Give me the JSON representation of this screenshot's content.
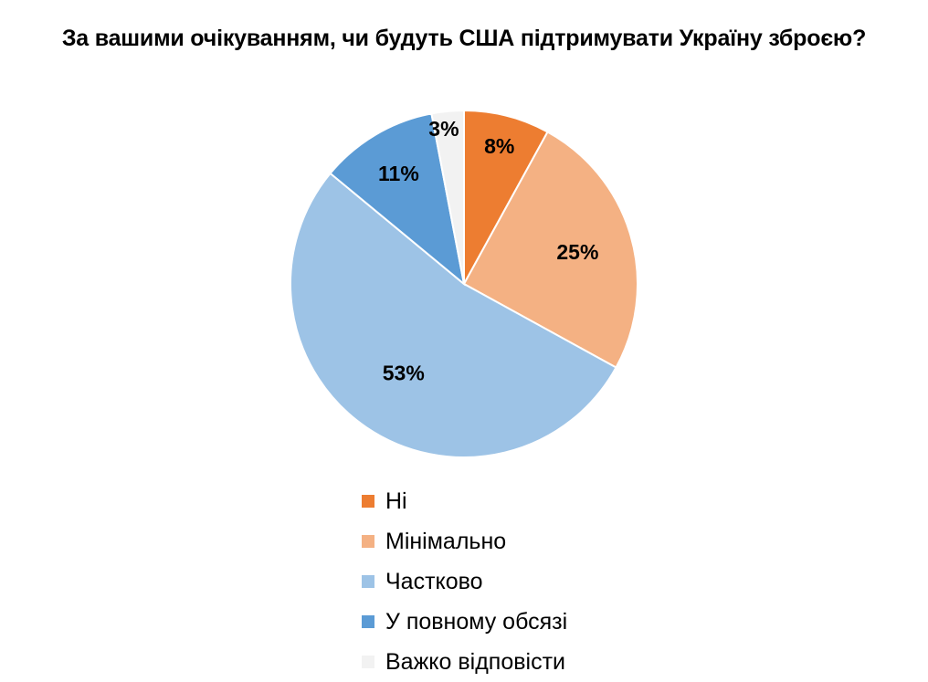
{
  "chart_data": {
    "type": "pie",
    "title": "За вашими очікуванням, чи будуть США підтримувати Україну зброєю?",
    "categories": [
      "Ні",
      "Мінімально",
      "Частково",
      "У повному обсязі",
      "Важко відповісти"
    ],
    "values": [
      8,
      25,
      53,
      11,
      3
    ],
    "value_labels": [
      "8%",
      "25%",
      "53%",
      "11%",
      "3%"
    ],
    "colors": [
      "#ED7D31",
      "#F4B183",
      "#9DC3E6",
      "#5B9BD5",
      "#F2F2F2"
    ],
    "start_angle_deg": 0,
    "direction": "clockwise",
    "legend_position": "bottom"
  }
}
